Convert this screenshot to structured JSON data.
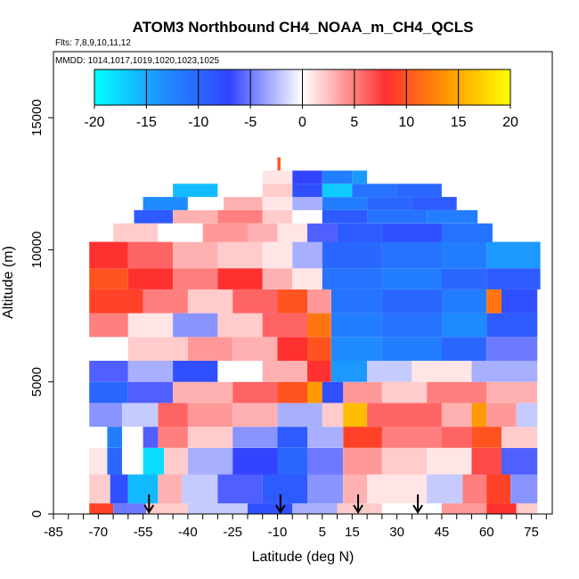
{
  "chart_data": {
    "type": "heatmap",
    "title": "ATOM3 Northbound CH4_NOAA_m_CH4_QCLS",
    "flights_text": "Flts: 7,8,9,10,11,12",
    "mmdd_text": "MMDD: 1014,1017,1019,1020,1023,1025",
    "xlabel": "Latitude (deg N)",
    "ylabel": "Altitude (m)",
    "xlim": [
      -85,
      82
    ],
    "ylim": [
      0,
      17500
    ],
    "x_ticks": [
      -85,
      -70,
      -55,
      -40,
      -25,
      -10,
      5,
      15,
      30,
      45,
      60,
      75
    ],
    "x_tick_labels": [
      "-85",
      "-70",
      "-55",
      "-40",
      "-25",
      "-10",
      "5",
      "15",
      "30",
      "45",
      "60",
      "75"
    ],
    "y_ticks": [
      0,
      5000,
      10000,
      15000
    ],
    "y_tick_labels": [
      "0",
      "5000",
      "10000",
      "15000"
    ],
    "colorbar": {
      "range": [
        -20,
        20
      ],
      "ticks": [
        -20,
        -15,
        -10,
        -5,
        0,
        5,
        10,
        15,
        20
      ],
      "tick_labels": [
        "-20",
        "-15",
        "-10",
        "-5",
        "0",
        "5",
        "10",
        "15",
        "20"
      ],
      "colors": [
        "#00ffff",
        "#1e90ff",
        "#3344ff",
        "#ffffff",
        "#ff3030",
        "#ff9900",
        "#ffff00"
      ]
    },
    "arrows_lat": [
      -53,
      -9,
      17,
      37
    ],
    "grid": false,
    "bands": [
      {
        "alt": [
          0,
          400
        ],
        "segments": [
          [
            -73,
            -65,
            9
          ],
          [
            -65,
            -54,
            -5
          ],
          [
            -54,
            -40,
            2
          ],
          [
            -40,
            -20,
            -2
          ],
          [
            -20,
            -5,
            -8
          ],
          [
            -5,
            10,
            -3
          ],
          [
            10,
            25,
            2
          ],
          [
            25,
            45,
            0
          ],
          [
            45,
            60,
            4
          ],
          [
            60,
            70,
            8
          ],
          [
            70,
            77,
            2
          ]
        ]
      },
      {
        "alt": [
          400,
          1500
        ],
        "segments": [
          [
            -73,
            -66,
            2
          ],
          [
            -66,
            -60,
            -8
          ],
          [
            -60,
            -50,
            -16
          ],
          [
            -50,
            -42,
            3
          ],
          [
            -42,
            -30,
            -2
          ],
          [
            -30,
            -15,
            -6
          ],
          [
            -15,
            0,
            -9
          ],
          [
            0,
            12,
            -4
          ],
          [
            12,
            20,
            3
          ],
          [
            20,
            40,
            1
          ],
          [
            40,
            52,
            -2
          ],
          [
            52,
            60,
            5
          ],
          [
            60,
            68,
            9
          ],
          [
            68,
            77,
            -4
          ]
        ]
      },
      {
        "alt": [
          1500,
          2500
        ],
        "segments": [
          [
            -73,
            -67,
            1
          ],
          [
            -67,
            -62,
            -10
          ],
          [
            -62,
            -55,
            0
          ],
          [
            -55,
            -48,
            -18
          ],
          [
            -48,
            -40,
            2
          ],
          [
            -40,
            -25,
            -3
          ],
          [
            -25,
            -10,
            -7
          ],
          [
            -10,
            0,
            -10
          ],
          [
            0,
            12,
            -5
          ],
          [
            12,
            25,
            4
          ],
          [
            25,
            40,
            2
          ],
          [
            40,
            55,
            1
          ],
          [
            55,
            65,
            7
          ],
          [
            65,
            77,
            -6
          ]
        ]
      },
      {
        "alt": [
          2500,
          3300
        ],
        "segments": [
          [
            -73,
            -67,
            0
          ],
          [
            -67,
            -62,
            -12
          ],
          [
            -62,
            -55,
            0
          ],
          [
            -55,
            -50,
            -6
          ],
          [
            -50,
            -40,
            5
          ],
          [
            -40,
            -25,
            2
          ],
          [
            -25,
            -10,
            -4
          ],
          [
            -10,
            0,
            -9
          ],
          [
            0,
            12,
            -3
          ],
          [
            12,
            25,
            9
          ],
          [
            25,
            45,
            5
          ],
          [
            45,
            55,
            6
          ],
          [
            55,
            65,
            10
          ],
          [
            65,
            77,
            2
          ]
        ]
      },
      {
        "alt": [
          3300,
          4200
        ],
        "segments": [
          [
            -73,
            -62,
            -4
          ],
          [
            -62,
            -50,
            -2
          ],
          [
            -50,
            -40,
            6
          ],
          [
            -40,
            -25,
            4
          ],
          [
            -25,
            -10,
            3
          ],
          [
            -10,
            5,
            -3
          ],
          [
            5,
            12,
            2
          ],
          [
            12,
            20,
            16
          ],
          [
            20,
            45,
            6
          ],
          [
            45,
            55,
            3
          ],
          [
            55,
            60,
            14
          ],
          [
            60,
            70,
            4
          ],
          [
            70,
            77,
            -2
          ]
        ]
      },
      {
        "alt": [
          4200,
          5000
        ],
        "segments": [
          [
            -73,
            -60,
            -10
          ],
          [
            -60,
            -45,
            -6
          ],
          [
            -45,
            -25,
            3
          ],
          [
            -25,
            -10,
            6
          ],
          [
            -10,
            0,
            10
          ],
          [
            0,
            5,
            14
          ],
          [
            5,
            12,
            -8
          ],
          [
            12,
            25,
            4
          ],
          [
            25,
            40,
            2
          ],
          [
            40,
            60,
            5
          ],
          [
            60,
            77,
            3
          ]
        ]
      },
      {
        "alt": [
          5000,
          5800
        ],
        "segments": [
          [
            -73,
            -60,
            -6
          ],
          [
            -60,
            -45,
            -3
          ],
          [
            -45,
            -30,
            -8
          ],
          [
            -30,
            -15,
            0
          ],
          [
            -15,
            0,
            3
          ],
          [
            0,
            8,
            8
          ],
          [
            8,
            20,
            -14
          ],
          [
            20,
            35,
            -2
          ],
          [
            35,
            55,
            1
          ],
          [
            55,
            77,
            -3
          ]
        ]
      },
      {
        "alt": [
          5800,
          6700
        ],
        "segments": [
          [
            -73,
            -60,
            0
          ],
          [
            -60,
            -40,
            2
          ],
          [
            -40,
            -25,
            4
          ],
          [
            -25,
            -10,
            3
          ],
          [
            -10,
            0,
            8
          ],
          [
            0,
            8,
            10
          ],
          [
            8,
            25,
            -13
          ],
          [
            25,
            45,
            -12
          ],
          [
            45,
            60,
            -10
          ],
          [
            60,
            77,
            -5
          ]
        ]
      },
      {
        "alt": [
          6700,
          7600
        ],
        "segments": [
          [
            -73,
            -60,
            5
          ],
          [
            -60,
            -45,
            1
          ],
          [
            -45,
            -30,
            -4
          ],
          [
            -30,
            -15,
            2
          ],
          [
            -15,
            0,
            6
          ],
          [
            0,
            8,
            12
          ],
          [
            8,
            25,
            -12
          ],
          [
            25,
            45,
            -11
          ],
          [
            45,
            60,
            -13
          ],
          [
            60,
            77,
            -9
          ]
        ]
      },
      {
        "alt": [
          7600,
          8500
        ],
        "segments": [
          [
            -73,
            -55,
            9
          ],
          [
            -55,
            -40,
            5
          ],
          [
            -40,
            -25,
            2
          ],
          [
            -25,
            -10,
            6
          ],
          [
            -10,
            0,
            10
          ],
          [
            0,
            8,
            4
          ],
          [
            8,
            25,
            -11
          ],
          [
            25,
            45,
            -10
          ],
          [
            45,
            60,
            -12
          ],
          [
            60,
            65,
            12
          ],
          [
            65,
            77,
            -8
          ]
        ]
      },
      {
        "alt": [
          8500,
          9300
        ],
        "segments": [
          [
            -73,
            -60,
            10
          ],
          [
            -60,
            -45,
            8
          ],
          [
            -45,
            -30,
            5
          ],
          [
            -30,
            -15,
            8
          ],
          [
            -15,
            -5,
            3
          ],
          [
            -5,
            5,
            1
          ],
          [
            5,
            25,
            -11
          ],
          [
            25,
            45,
            -12
          ],
          [
            45,
            60,
            -10
          ],
          [
            60,
            78,
            -9
          ]
        ]
      },
      {
        "alt": [
          9300,
          10300
        ],
        "segments": [
          [
            -73,
            -60,
            8
          ],
          [
            -60,
            -45,
            6
          ],
          [
            -45,
            -30,
            3
          ],
          [
            -30,
            -15,
            2
          ],
          [
            -15,
            -5,
            1
          ],
          [
            -5,
            5,
            -3
          ],
          [
            5,
            25,
            -10
          ],
          [
            25,
            45,
            -11
          ],
          [
            45,
            60,
            -12
          ],
          [
            60,
            78,
            -14
          ]
        ]
      },
      {
        "alt": [
          10300,
          11000
        ],
        "segments": [
          [
            -65,
            -50,
            2
          ],
          [
            -50,
            -35,
            0
          ],
          [
            -35,
            -20,
            4
          ],
          [
            -20,
            -10,
            3
          ],
          [
            -10,
            0,
            1
          ],
          [
            0,
            10,
            -6
          ],
          [
            10,
            25,
            -9
          ],
          [
            25,
            45,
            -8
          ],
          [
            45,
            62,
            -11
          ]
        ]
      },
      {
        "alt": [
          11000,
          11500
        ],
        "segments": [
          [
            -58,
            -45,
            -9
          ],
          [
            -45,
            -30,
            3
          ],
          [
            -30,
            -15,
            5
          ],
          [
            -15,
            -5,
            2
          ],
          [
            -5,
            5,
            0
          ],
          [
            5,
            20,
            -9
          ],
          [
            20,
            40,
            -11
          ],
          [
            40,
            57,
            -12
          ]
        ]
      },
      {
        "alt": [
          11500,
          12000
        ],
        "segments": [
          [
            -55,
            -40,
            -13
          ],
          [
            -40,
            -28,
            0
          ],
          [
            -28,
            -15,
            3
          ],
          [
            -15,
            -5,
            1
          ],
          [
            -5,
            5,
            -3
          ],
          [
            5,
            20,
            -12
          ],
          [
            20,
            35,
            -10
          ],
          [
            35,
            50,
            -9
          ]
        ]
      },
      {
        "alt": [
          12000,
          12500
        ],
        "segments": [
          [
            -45,
            -30,
            -16
          ],
          [
            -30,
            -15,
            0
          ],
          [
            -15,
            -5,
            2
          ],
          [
            -5,
            5,
            -8
          ],
          [
            5,
            15,
            -17
          ],
          [
            15,
            30,
            -11
          ],
          [
            30,
            45,
            -10
          ]
        ]
      },
      {
        "alt": [
          12500,
          13000
        ],
        "segments": [
          [
            -30,
            -15,
            0
          ],
          [
            -15,
            -5,
            1
          ],
          [
            -5,
            5,
            -7
          ],
          [
            5,
            15,
            -12
          ],
          [
            15,
            20,
            -14
          ]
        ]
      },
      {
        "alt": [
          13000,
          13500
        ],
        "segments": [
          [
            -10,
            -9,
            10
          ]
        ]
      }
    ]
  }
}
